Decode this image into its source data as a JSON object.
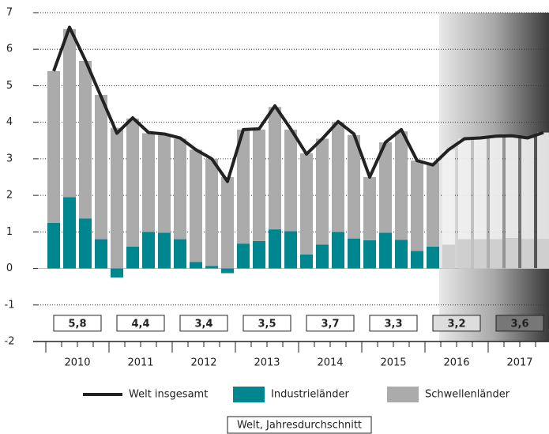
{
  "chart_data": {
    "type": "bar",
    "categories": [
      null,
      null,
      null,
      null,
      null,
      null,
      null,
      null,
      null,
      null,
      null,
      null,
      null,
      null,
      null,
      null,
      null,
      null,
      null,
      null,
      null,
      null,
      null,
      null,
      null,
      null,
      null,
      null,
      null,
      null,
      null,
      null
    ],
    "years": [
      "2010",
      "2011",
      "2012",
      "2013",
      "2014",
      "2015",
      "2016",
      "2017"
    ],
    "series": [
      {
        "name": "Welt insgesamt",
        "type": "line",
        "color": "#222222",
        "values": [
          5.4,
          6.6,
          5.7,
          4.7,
          3.7,
          4.12,
          3.72,
          3.68,
          3.57,
          3.25,
          3.0,
          2.38,
          3.8,
          3.82,
          4.45,
          3.82,
          3.13,
          3.55,
          4.02,
          3.68,
          2.5,
          3.45,
          3.8,
          2.95,
          2.83,
          3.25,
          3.55,
          3.57,
          3.62,
          3.63,
          3.57,
          3.72
        ]
      },
      {
        "name": "Industrieländer",
        "color": "#00868e",
        "values": [
          1.25,
          1.95,
          1.37,
          0.8,
          -0.25,
          0.6,
          1.0,
          0.98,
          0.8,
          0.18,
          0.07,
          -0.13,
          0.68,
          0.75,
          1.07,
          1.02,
          0.38,
          0.65,
          1.0,
          0.82,
          0.77,
          0.98,
          0.78,
          0.48,
          0.6,
          0.65,
          0.8,
          0.8,
          0.8,
          0.83,
          0.8,
          0.8
        ]
      },
      {
        "name": "Schwellenländer",
        "color": "#ababab",
        "values": [
          4.15,
          4.6,
          4.31,
          3.95,
          3.85,
          3.5,
          2.7,
          2.67,
          2.75,
          3.07,
          2.93,
          2.5,
          3.12,
          3.05,
          3.35,
          2.78,
          2.77,
          2.9,
          3.0,
          2.83,
          1.73,
          2.47,
          2.97,
          2.47,
          2.3,
          2.6,
          2.75,
          2.77,
          2.82,
          2.8,
          2.77,
          2.92
        ]
      }
    ],
    "forecast_start_index": 25,
    "annual_averages": {
      "label": "Welt, Jahresdurchschnitt",
      "values": [
        5.8,
        4.4,
        3.4,
        3.5,
        3.7,
        3.3,
        3.2,
        3.6
      ],
      "value_labels": [
        "5,8",
        "4,4",
        "3,4",
        "3,5",
        "3,7",
        "3,3",
        "3,2",
        "3,6"
      ]
    },
    "ylim": [
      -2,
      7
    ],
    "yticks": [
      -2,
      -1,
      0,
      1,
      2,
      3,
      4,
      5,
      6,
      7
    ],
    "grid": true
  }
}
